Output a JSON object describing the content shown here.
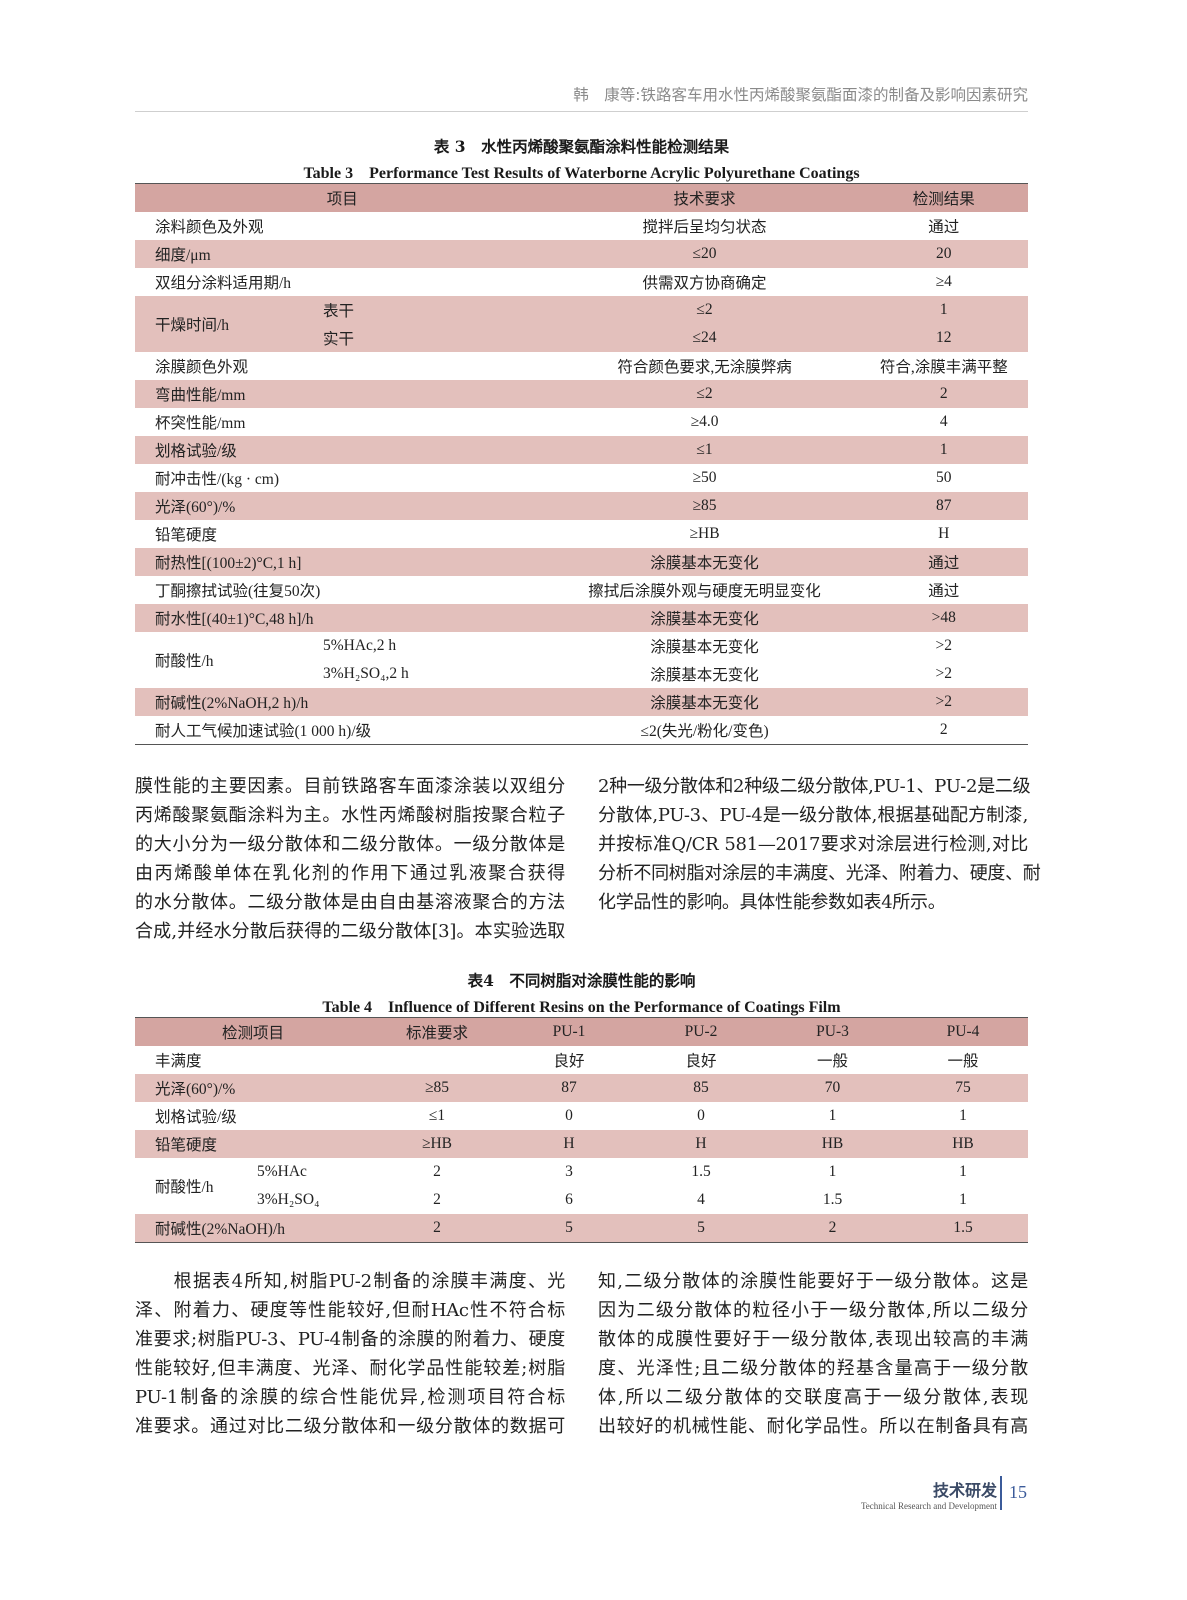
{
  "running_head": "韩　康等:铁路客车用水性丙烯酸聚氨酯面漆的制备及影响因素研究",
  "table3": {
    "caption_cn": "表 3　水性丙烯酸聚氨酯涂料性能检测结果",
    "caption_en": "Table 3　Performance Test Results of Waterborne Acrylic Polyurethane Coatings",
    "headers": [
      "项目",
      "技术要求",
      "检测结果"
    ],
    "rows": [
      {
        "item": "涂料颜色及外观",
        "sub": "",
        "req": "搅拌后呈均匀状态",
        "result": "通过"
      },
      {
        "item": "细度/μm",
        "sub": "",
        "req": "≤20",
        "result": "20"
      },
      {
        "item": "双组分涂料适用期/h",
        "sub": "",
        "req": "供需双方协商确定",
        "result": "≥4"
      },
      {
        "item": "干燥时间/h",
        "sub": "表干",
        "req": "≤2",
        "result": "1"
      },
      {
        "item": "",
        "sub": "实干",
        "req": "≤24",
        "result": "12"
      },
      {
        "item": "涂膜颜色外观",
        "sub": "",
        "req": "符合颜色要求,无涂膜弊病",
        "result": "符合,涂膜丰满平整"
      },
      {
        "item": "弯曲性能/mm",
        "sub": "",
        "req": "≤2",
        "result": "2"
      },
      {
        "item": "杯突性能/mm",
        "sub": "",
        "req": "≥4.0",
        "result": "4"
      },
      {
        "item": "划格试验/级",
        "sub": "",
        "req": "≤1",
        "result": "1"
      },
      {
        "item": "耐冲击性/(kg · cm)",
        "sub": "",
        "req": "≥50",
        "result": "50"
      },
      {
        "item": "光泽(60°)/%",
        "sub": "",
        "req": "≥85",
        "result": "87"
      },
      {
        "item": "铅笔硬度",
        "sub": "",
        "req": "≥HB",
        "result": "H"
      },
      {
        "item": "耐热性[(100±2)°C,1 h]",
        "sub": "",
        "req": "涂膜基本无变化",
        "result": "通过"
      },
      {
        "item": "丁酮擦拭试验(往复50次)",
        "sub": "",
        "req": "擦拭后涂膜外观与硬度无明显变化",
        "result": "通过"
      },
      {
        "item": "耐水性[(40±1)°C,48 h]/h",
        "sub": "",
        "req": "涂膜基本无变化",
        "result": ">48"
      },
      {
        "item": "耐酸性/h",
        "sub": "5%HAc,2 h",
        "req": "涂膜基本无变化",
        "result": ">2"
      },
      {
        "item": "",
        "sub": "3%H₂SO₄,2 h",
        "req": "涂膜基本无变化",
        "result": ">2"
      },
      {
        "item": "耐碱性(2%NaOH,2 h)/h",
        "sub": "",
        "req": "涂膜基本无变化",
        "result": ">2"
      },
      {
        "item": "耐人工气候加速试验(1 000 h)/级",
        "sub": "",
        "req": "≤2(失光/粉化/变色)",
        "result": "2"
      }
    ]
  },
  "body1": {
    "left": [
      "膜性能的主要因素。目前铁路客车面漆涂装以双组分",
      "丙烯酸聚氨酯涂料为主。水性丙烯酸树脂按聚合粒子",
      "的大小分为一级分散体和二级分散体。一级分散体是",
      "由丙烯酸单体在乳化剂的作用下通过乳液聚合获得",
      "的水分散体。二级分散体是由自由基溶液聚合的方法",
      "合成,并经水分散后获得的二级分散体[3]。本实验选取"
    ],
    "right": [
      "2种一级分散体和2种级二级分散体,PU-1、PU-2是二级",
      "分散体,PU-3、PU-4是一级分散体,根据基础配方制漆,",
      "并按标准Q/CR 581—2017要求对涂层进行检测,对比",
      "分析不同树脂对涂层的丰满度、光泽、附着力、硬度、耐",
      "化学品性的影响。具体性能参数如表4所示。"
    ]
  },
  "table4": {
    "caption_cn": "表4　不同树脂对涂膜性能的影响",
    "caption_en": "Table 4　Influence of Different Resins on the Performance of Coatings Film",
    "headers": [
      "检测项目",
      "标准要求",
      "PU-1",
      "PU-2",
      "PU-3",
      "PU-4"
    ],
    "rows": [
      {
        "item": "丰满度",
        "sub": "",
        "vals": [
          "",
          "良好",
          "良好",
          "一般",
          "一般"
        ]
      },
      {
        "item": "光泽(60°)/%",
        "sub": "",
        "vals": [
          "≥85",
          "87",
          "85",
          "70",
          "75"
        ]
      },
      {
        "item": "划格试验/级",
        "sub": "",
        "vals": [
          "≤1",
          "0",
          "0",
          "1",
          "1"
        ]
      },
      {
        "item": "铅笔硬度",
        "sub": "",
        "vals": [
          "≥HB",
          "H",
          "H",
          "HB",
          "HB"
        ]
      },
      {
        "item": "耐酸性/h",
        "sub": "5%HAc",
        "vals": [
          "2",
          "3",
          "1.5",
          "1",
          "1"
        ]
      },
      {
        "item": "",
        "sub": "3%H₂SO₄",
        "vals": [
          "2",
          "6",
          "4",
          "1.5",
          "1"
        ]
      },
      {
        "item": "耐碱性(2%NaOH)/h",
        "sub": "",
        "vals": [
          "2",
          "5",
          "5",
          "2",
          "1.5"
        ]
      }
    ]
  },
  "body2": {
    "left": [
      "　　根据表4所知,树脂PU-2制备的涂膜丰满度、光",
      "泽、附着力、硬度等性能较好,但耐HAc性不符合标",
      "准要求;树脂PU-3、PU-4制备的涂膜的附着力、硬度",
      "性能较好,但丰满度、光泽、耐化学品性能较差;树脂",
      "PU-1制备的涂膜的综合性能优异,检测项目符合标",
      "准要求。通过对比二级分散体和一级分散体的数据可"
    ],
    "right": [
      "知,二级分散体的涂膜性能要好于一级分散体。这是",
      "因为二级分散体的粒径小于一级分散体,所以二级分",
      "散体的成膜性要好于一级分散体,表现出较高的丰满",
      "度、光泽性;且二级分散体的羟基含量高于一级分散",
      "体,所以二级分散体的交联度高于一级分散体,表现",
      "出较好的机械性能、耐化学品性。所以在制备具有高"
    ]
  },
  "footer": {
    "section_cn": "技术研发",
    "section_en": "Technical Research and Development",
    "page": "15"
  },
  "colors": {
    "header_row": "#d4a5a1",
    "shaded_row": "#e3c0bc",
    "footer_blue": "#3b5b9a"
  }
}
